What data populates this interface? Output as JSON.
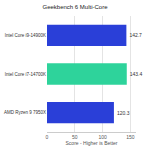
{
  "chart_data": {
    "type": "bar",
    "orientation": "horizontal",
    "title": "Geekbench 6 Multi-Core",
    "x_label": "Score - Higher is Better",
    "categories": [
      "Intel Core i9-14900K",
      "Intel Core i7-14700K",
      "AMD Ryzen 9 7950X"
    ],
    "values": [
      142.7,
      143.4,
      120.3
    ],
    "colors": [
      "#2a3fd8",
      "#2ed39b",
      "#2a3fd8"
    ],
    "xlim": [
      0,
      160
    ],
    "xticks": [
      0,
      50,
      100,
      150
    ],
    "grid": true,
    "data_labels": true
  }
}
